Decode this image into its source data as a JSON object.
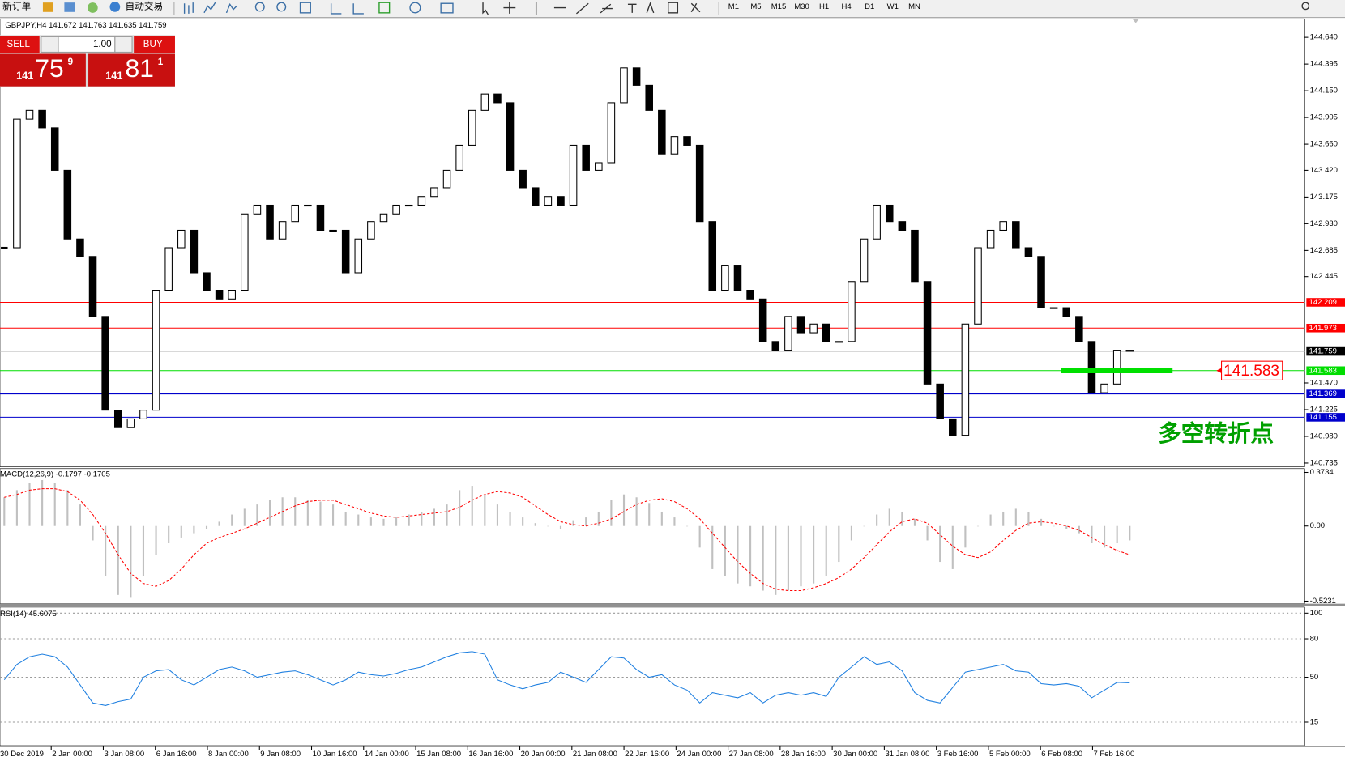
{
  "toolbar": {
    "new_order": "新订单",
    "auto_trade": "自动交易",
    "timeframes": [
      "M1",
      "M5",
      "M15",
      "M30",
      "H1",
      "H4",
      "D1",
      "W1",
      "MN"
    ]
  },
  "trade_panel": {
    "sell_label": "SELL",
    "lot": "1.00",
    "buy_label": "BUY",
    "sell_price": [
      "141",
      "75",
      "9"
    ],
    "buy_price": [
      "141",
      "81",
      "1"
    ]
  },
  "chart_data": [
    {
      "type": "candlestick",
      "title": "GBPJPY,H4 141.672 141.763 141.635 141.759",
      "annotation": "多空转折点",
      "closes": [
        142.71,
        143.89,
        143.97,
        143.81,
        143.42,
        142.79,
        142.63,
        142.08,
        141.22,
        141.06,
        141.14,
        141.22,
        142.32,
        142.71,
        142.87,
        142.48,
        142.32,
        142.24,
        142.32,
        143.02,
        143.1,
        142.79,
        142.95,
        143.1,
        143.1,
        142.87,
        142.87,
        142.48,
        142.79,
        142.95,
        143.02,
        143.1,
        143.1,
        143.18,
        143.26,
        143.42,
        143.65,
        143.97,
        144.12,
        144.04,
        143.42,
        143.26,
        143.1,
        143.18,
        143.1,
        143.65,
        143.42,
        143.49,
        144.04,
        144.36,
        144.2,
        143.97,
        143.57,
        143.73,
        143.65,
        142.95,
        142.32,
        142.55,
        142.32,
        142.24,
        141.85,
        141.77,
        142.08,
        141.93,
        142.01,
        141.85,
        141.85,
        142.4,
        142.79,
        143.1,
        142.95,
        142.87,
        142.4,
        141.46,
        141.14,
        140.99,
        142.01,
        142.71,
        142.87,
        142.95,
        142.71,
        142.63,
        142.16,
        142.16,
        142.08,
        141.85,
        141.38,
        141.46,
        141.77,
        141.76
      ],
      "ylim": [
        140.7,
        144.81
      ],
      "yticks": [
        {
          "value": 144.64,
          "label": "144.640"
        },
        144.395,
        {
          "value": 144.15,
          "label": "144.150"
        },
        143.905,
        {
          "value": 143.66,
          "label": "143.660"
        },
        {
          "value": 143.42,
          "label": "143.420"
        },
        143.175,
        {
          "value": 142.93,
          "label": "142.930"
        },
        142.685,
        142.445,
        {
          "value": 141.47,
          "label": "141.470"
        },
        141.225,
        {
          "value": 140.98,
          "label": "140.980"
        },
        140.735
      ],
      "levels": [
        {
          "value": 142.209,
          "color": "#ff0000"
        },
        {
          "value": 141.973,
          "color": "#ff0000"
        },
        {
          "value": 141.759,
          "color": "#c0c0c0"
        },
        {
          "value": 141.583,
          "color": "#00dd00"
        },
        {
          "value": 141.369,
          "color": "#0000cc"
        },
        {
          "value": 141.155,
          "color": "#0000cc"
        }
      ]
    },
    {
      "type": "macd",
      "title": "MACD(12,26,9) -0.1797 -0.1705",
      "histogram": [
        0.2,
        0.25,
        0.3,
        0.32,
        0.3,
        0.25,
        0.15,
        -0.1,
        -0.35,
        -0.48,
        -0.5,
        -0.35,
        -0.2,
        -0.12,
        -0.08,
        -0.05,
        -0.02,
        0.03,
        0.08,
        0.12,
        0.15,
        0.18,
        0.2,
        0.2,
        0.18,
        0.17,
        0.15,
        0.1,
        0.08,
        0.06,
        0.05,
        0.06,
        0.08,
        0.1,
        0.12,
        0.15,
        0.25,
        0.28,
        0.22,
        0.15,
        0.1,
        0.06,
        0.02,
        0.0,
        -0.02,
        0.04,
        0.06,
        0.1,
        0.18,
        0.22,
        0.2,
        0.16,
        0.1,
        0.06,
        0.0,
        -0.15,
        -0.3,
        -0.35,
        -0.4,
        -0.42,
        -0.45,
        -0.48,
        -0.45,
        -0.42,
        -0.4,
        -0.35,
        -0.25,
        -0.1,
        0.0,
        0.08,
        0.12,
        0.1,
        0.05,
        -0.1,
        -0.25,
        -0.3,
        -0.15,
        0.0,
        0.08,
        0.1,
        0.12,
        0.1,
        0.05,
        0.0,
        -0.02,
        -0.05,
        -0.12,
        -0.15,
        -0.12,
        -0.1
      ],
      "signal": [
        0.2,
        0.22,
        0.25,
        0.26,
        0.26,
        0.24,
        0.18,
        0.08,
        -0.05,
        -0.2,
        -0.33,
        -0.4,
        -0.42,
        -0.38,
        -0.3,
        -0.2,
        -0.12,
        -0.08,
        -0.05,
        -0.02,
        0.02,
        0.06,
        0.1,
        0.14,
        0.17,
        0.18,
        0.18,
        0.15,
        0.12,
        0.09,
        0.07,
        0.06,
        0.07,
        0.08,
        0.09,
        0.1,
        0.13,
        0.18,
        0.22,
        0.24,
        0.23,
        0.2,
        0.14,
        0.08,
        0.03,
        0.01,
        0.0,
        0.02,
        0.05,
        0.1,
        0.15,
        0.18,
        0.19,
        0.17,
        0.12,
        0.05,
        -0.05,
        -0.15,
        -0.25,
        -0.33,
        -0.4,
        -0.44,
        -0.45,
        -0.45,
        -0.43,
        -0.4,
        -0.36,
        -0.3,
        -0.22,
        -0.13,
        -0.04,
        0.03,
        0.05,
        0.02,
        -0.06,
        -0.14,
        -0.2,
        -0.22,
        -0.18,
        -0.1,
        -0.03,
        0.02,
        0.03,
        0.02,
        0.0,
        -0.03,
        -0.08,
        -0.13,
        -0.17,
        -0.2
      ],
      "hist_color": "#c0c0c0",
      "signal_color": "#ff0000",
      "ylim": [
        -0.541,
        0.4
      ],
      "yticks": [
        0.3734,
        {
          "value": 0,
          "label": "0.00"
        },
        -0.5231
      ]
    },
    {
      "type": "rsi",
      "title": "RSI(14) 45.6075",
      "color": "#1e7fe0",
      "values": [
        48,
        60,
        66,
        68,
        66,
        58,
        44,
        30,
        28,
        31,
        33,
        50,
        55,
        56,
        48,
        44,
        50,
        56,
        58,
        55,
        50,
        52,
        54,
        55,
        52,
        48,
        44,
        48,
        54,
        52,
        51,
        53,
        56,
        58,
        62,
        66,
        69,
        70,
        68,
        48,
        44,
        41,
        44,
        46,
        54,
        50,
        46,
        56,
        66,
        65,
        56,
        50,
        52,
        44,
        40,
        30,
        38,
        36,
        34,
        38,
        30,
        36,
        38,
        36,
        38,
        35,
        50,
        58,
        66,
        60,
        62,
        55,
        38,
        32,
        30,
        42,
        54,
        56,
        58,
        60,
        55,
        54,
        45,
        44,
        45,
        43,
        34,
        40,
        46,
        45.6
      ],
      "ylim": [
        -3.3,
        104.7
      ],
      "yticks": [
        100,
        80,
        50,
        15
      ],
      "x_labels": [
        "30 Dec 2019",
        "2 Jan 00:00",
        "3 Jan 08:00",
        "6 Jan 16:00",
        "8 Jan 00:00",
        "9 Jan 08:00",
        "10 Jan 16:00",
        "14 Jan 00:00",
        "15 Jan 08:00",
        "16 Jan 16:00",
        "20 Jan 00:00",
        "21 Jan 08:00",
        "22 Jan 16:00",
        "24 Jan 00:00",
        "27 Jan 08:00",
        "28 Jan 16:00",
        "30 Jan 00:00",
        "31 Jan 08:00",
        "3 Feb 16:00",
        "5 Feb 00:00",
        "6 Feb 08:00",
        "7 Feb 16:00"
      ]
    }
  ]
}
